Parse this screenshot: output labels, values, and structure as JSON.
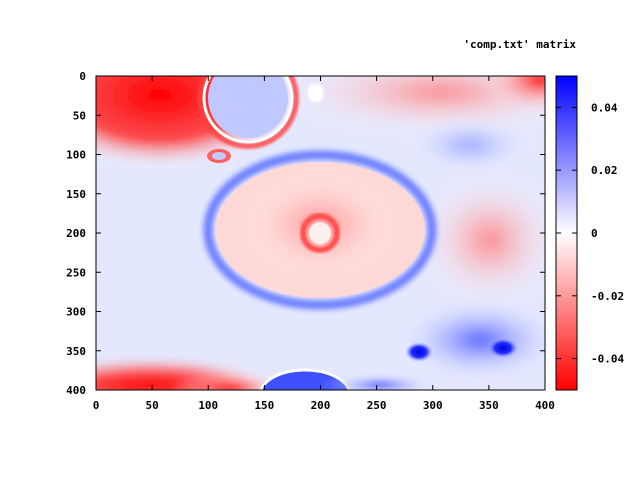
{
  "chart_data": {
    "type": "heatmap",
    "title": "'comp.txt' matrix",
    "xlabel": "",
    "ylabel": "",
    "xlim": [
      0,
      400
    ],
    "ylim": [
      400,
      0
    ],
    "x_ticks": [
      "0",
      "50",
      "100",
      "150",
      "200",
      "250",
      "300",
      "350",
      "400"
    ],
    "y_ticks": [
      "0",
      "50",
      "100",
      "150",
      "200",
      "250",
      "300",
      "350",
      "400"
    ],
    "colorbar": {
      "range": [
        -0.05,
        0.05
      ],
      "ticks": [
        "0.04",
        "0.02",
        "0",
        "-0.02",
        "-0.04"
      ],
      "tick_values": [
        0.04,
        0.02,
        0,
        -0.02,
        -0.04
      ],
      "low_color": "#ff0000",
      "mid_color": "#ffffff",
      "high_color": "#0000ff"
    },
    "grid": false
  }
}
